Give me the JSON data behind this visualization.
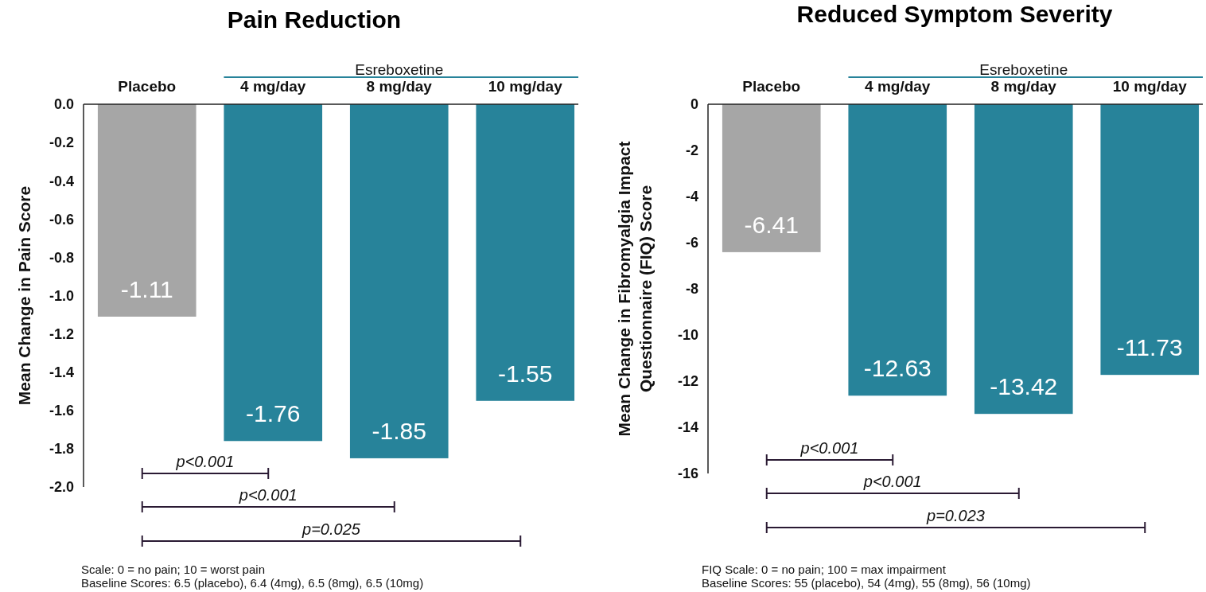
{
  "chart_data": [
    {
      "type": "bar",
      "title": "Pain Reduction",
      "ylabel": "Mean Change in Pain Score",
      "categories": [
        "Placebo",
        "4 mg/day",
        "8 mg/day",
        "10 mg/day"
      ],
      "values": [
        -1.11,
        -1.76,
        -1.85,
        -1.55
      ],
      "colors": [
        "#a6a6a6",
        "#27839a",
        "#27839a",
        "#27839a"
      ],
      "ylim": [
        -2,
        0
      ],
      "yticks": [
        {
          "value": 0,
          "label": "0.0"
        },
        -0.2,
        -0.4,
        -0.6,
        -0.8,
        {
          "value": -1,
          "label": "-1.0"
        },
        -1.2,
        -1.4,
        -1.6,
        -1.8,
        {
          "value": -2,
          "label": "-2.0"
        }
      ],
      "data_labels": true,
      "grid": false,
      "annotations": [
        "Esreboxetine",
        "p<0.001",
        "p<0.001",
        "p=0.025",
        "Scale: 0 = no pain; 10 = worst pain",
        "Baseline Scores: 6.5 (placebo), 6.4 (4mg), 6.5 (8mg), 6.5 (10mg)"
      ]
    },
    {
      "type": "bar",
      "title": "Reduced Symptom Severity",
      "ylabel": "Mean Change in Fibromyalgia Impact Questionnaire (FIQ) Score",
      "categories": [
        "Placebo",
        "4 mg/day",
        "8 mg/day",
        "10 mg/day"
      ],
      "values": [
        -6.41,
        -12.63,
        -13.42,
        -11.73
      ],
      "colors": [
        "#a6a6a6",
        "#27839a",
        "#27839a",
        "#27839a"
      ],
      "ylim": [
        -16,
        0
      ],
      "yticks": [
        0,
        -2,
        -4,
        -6,
        -8,
        -10,
        -12,
        -14,
        -16
      ],
      "data_labels": true,
      "grid": false,
      "annotations": [
        "Esreboxetine",
        "p<0.001",
        "p<0.001",
        "p=0.023",
        "FIQ Scale: 0 = no pain; 100 = max impairment",
        "Baseline Scores: 55 (placebo), 54 (4mg), 55 (8mg), 56 (10mg)"
      ]
    }
  ]
}
